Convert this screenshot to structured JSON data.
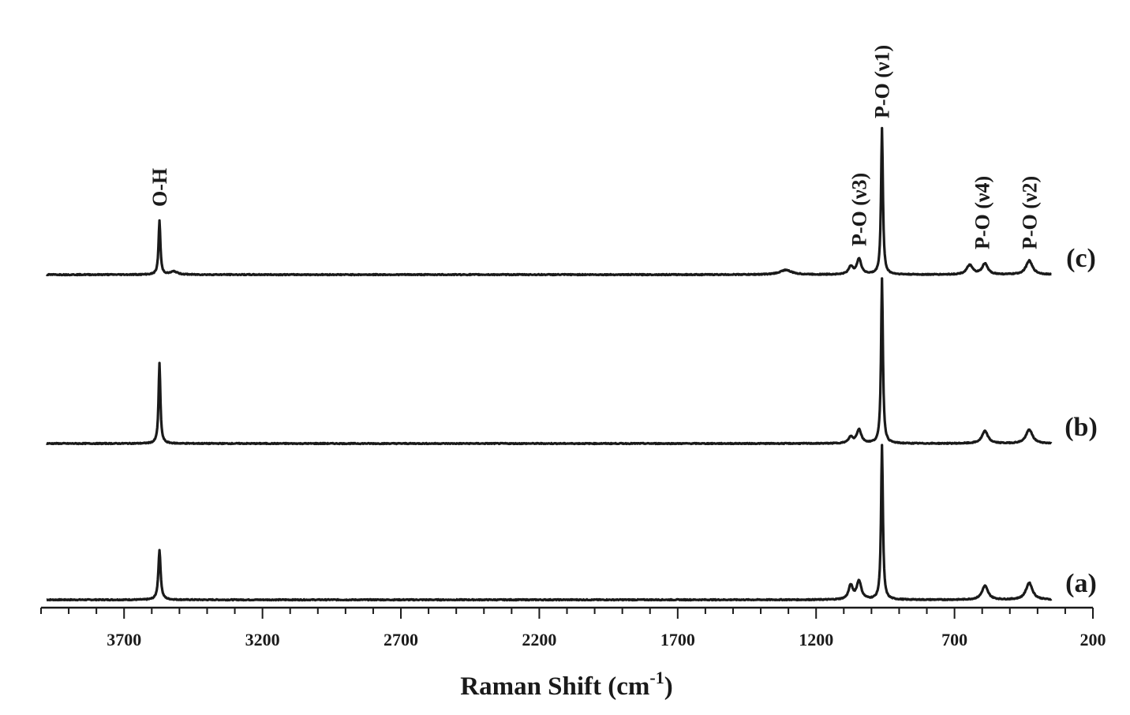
{
  "chart_data": {
    "type": "line",
    "title": "",
    "xlabel": "Raman Shift (cm",
    "xlabel_superscript": "-1",
    "xlabel_suffix": ")",
    "ylabel": "",
    "xlim": [
      4000,
      200
    ],
    "x_reversed": true,
    "y_axis_shown": false,
    "grid": false,
    "x_ticks": [
      "3700",
      "3200",
      "2700",
      "2200",
      "1700",
      "1200",
      "700",
      "200"
    ],
    "x_tick_values": [
      3700,
      3200,
      2700,
      2200,
      1700,
      1200,
      700,
      200
    ],
    "minor_tick_step": 100,
    "x_range_data": [
      3980,
      350
    ],
    "stack_order_bottom_to_top": [
      "(a)",
      "(b)",
      "(c)"
    ],
    "series": [
      {
        "name": "(a)",
        "baseline": 0,
        "offset": 0,
        "peaks": [
          {
            "x": 3572,
            "height": 0.32,
            "width": 5
          },
          {
            "x": 1075,
            "height": 0.09,
            "width": 9
          },
          {
            "x": 1045,
            "height": 0.12,
            "width": 10
          },
          {
            "x": 962,
            "height": 1.0,
            "width": 4
          },
          {
            "x": 590,
            "height": 0.09,
            "width": 13
          },
          {
            "x": 430,
            "height": 0.11,
            "width": 14
          }
        ]
      },
      {
        "name": "(b)",
        "offset": 1.1,
        "peaks": [
          {
            "x": 3572,
            "height": 0.52,
            "width": 4
          },
          {
            "x": 1075,
            "height": 0.04,
            "width": 9
          },
          {
            "x": 1045,
            "height": 0.09,
            "width": 10
          },
          {
            "x": 962,
            "height": 1.07,
            "width": 4
          },
          {
            "x": 590,
            "height": 0.08,
            "width": 13
          },
          {
            "x": 430,
            "height": 0.09,
            "width": 14
          }
        ]
      },
      {
        "name": "(c)",
        "offset": 2.18,
        "peaks": [
          {
            "x": 3572,
            "height": 0.35,
            "width": 4
          },
          {
            "x": 3520,
            "height": 0.02,
            "width": 15
          },
          {
            "x": 1310,
            "height": 0.03,
            "width": 25
          },
          {
            "x": 1075,
            "height": 0.05,
            "width": 9
          },
          {
            "x": 1045,
            "height": 0.1,
            "width": 10
          },
          {
            "x": 962,
            "height": 0.95,
            "width": 4
          },
          {
            "x": 645,
            "height": 0.06,
            "width": 13
          },
          {
            "x": 590,
            "height": 0.07,
            "width": 12
          },
          {
            "x": 430,
            "height": 0.09,
            "width": 14
          }
        ]
      }
    ],
    "annotations": [
      {
        "text": "O-H",
        "x": 3572,
        "series": "(c)",
        "rotation": -90
      },
      {
        "text": "P-O (ν3)",
        "x": 1045,
        "series": "(c)",
        "rotation": -90
      },
      {
        "text": "P-O (ν1)",
        "x": 962,
        "series": "(c)",
        "rotation": -90
      },
      {
        "text": "P-O (ν4)",
        "x": 600,
        "series": "(c)",
        "rotation": -90
      },
      {
        "text": "P-O (ν2)",
        "x": 430,
        "series": "(c)",
        "rotation": -90
      }
    ],
    "line_color": "#1a1a1a"
  }
}
